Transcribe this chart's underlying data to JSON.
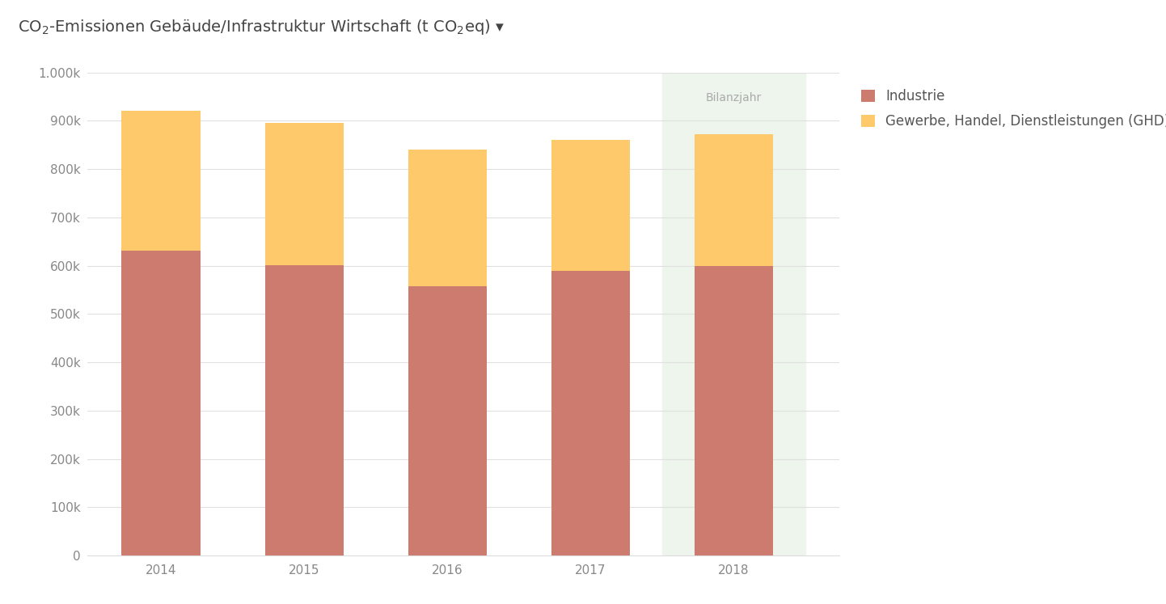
{
  "years": [
    2014,
    2015,
    2016,
    2017,
    2018
  ],
  "industrie": [
    632000,
    601000,
    557000,
    590000,
    600000
  ],
  "ghd": [
    288000,
    295000,
    283000,
    270000,
    272000
  ],
  "industrie_color": "#cd7b6e",
  "ghd_color": "#fdc96a",
  "highlight_year": 2018,
  "highlight_color": "#edf5ec",
  "bilanzjahr_label": "Bilanzjahr",
  "title_main": "CO",
  "title_sub2": "2",
  "title_rest": "-Emissionen Gebäude/Infrastruktur Wirtschaft (t CO",
  "title_sub2b": "2",
  "title_end": "eq) ▾",
  "legend_industrie": "Industrie",
  "legend_ghd": "Gewerbe, Handel, Dienstleistungen (GHD)",
  "ylim": [
    0,
    1000000
  ],
  "yticks": [
    0,
    100000,
    200000,
    300000,
    400000,
    500000,
    600000,
    700000,
    800000,
    900000,
    1000000
  ],
  "ytick_labels": [
    "0",
    "100k",
    "200k",
    "300k",
    "400k",
    "500k",
    "600k",
    "700k",
    "800k",
    "900k",
    "1.000k"
  ],
  "background_color": "#ffffff",
  "title_fontsize": 14,
  "tick_fontsize": 11,
  "legend_fontsize": 12,
  "bar_width": 0.55
}
